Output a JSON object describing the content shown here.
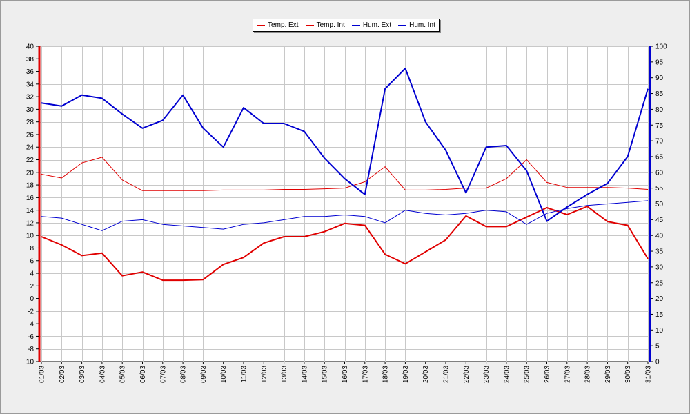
{
  "chart_data": {
    "type": "line",
    "title": "",
    "xlabel": "",
    "ylabel": "",
    "y2label": "",
    "categories": [
      "01/03",
      "02/03",
      "03/03",
      "04/03",
      "05/03",
      "06/03",
      "07/03",
      "08/03",
      "09/03",
      "10/03",
      "11/03",
      "12/03",
      "13/03",
      "14/03",
      "15/03",
      "16/03",
      "17/03",
      "18/03",
      "19/03",
      "20/03",
      "21/03",
      "22/03",
      "23/03",
      "24/03",
      "25/03",
      "26/03",
      "27/03",
      "28/03",
      "29/03",
      "30/03",
      "31/03"
    ],
    "ylim": [
      -10,
      40
    ],
    "yticks": [
      -10,
      -8,
      -6,
      -4,
      -2,
      0,
      2,
      4,
      6,
      8,
      10,
      12,
      14,
      16,
      18,
      20,
      22,
      24,
      26,
      28,
      30,
      32,
      34,
      36,
      38,
      40
    ],
    "y2lim": [
      0,
      100
    ],
    "y2ticks": [
      0,
      5,
      10,
      15,
      20,
      25,
      30,
      35,
      40,
      45,
      50,
      55,
      60,
      65,
      70,
      75,
      80,
      85,
      90,
      95,
      100
    ],
    "grid": true,
    "legend_position": "top-center",
    "series": [
      {
        "name": "Temp. Ext",
        "axis": "left",
        "color": "#e00000",
        "width": 2,
        "values": [
          9.8,
          8.5,
          6.8,
          7.2,
          3.6,
          4.2,
          2.9,
          2.9,
          3.0,
          5.4,
          6.5,
          8.8,
          9.8,
          9.8,
          10.6,
          11.9,
          11.6,
          7.0,
          5.5,
          7.4,
          9.3,
          13.1,
          11.4,
          11.4,
          12.9,
          14.4,
          13.3,
          14.6,
          12.2,
          11.6,
          6.3
        ]
      },
      {
        "name": "Temp. Int",
        "axis": "left",
        "color": "#e00000",
        "width": 1,
        "values": [
          19.7,
          19.1,
          21.5,
          22.4,
          18.8,
          17.1,
          17.1,
          17.1,
          17.1,
          17.2,
          17.2,
          17.2,
          17.3,
          17.3,
          17.4,
          17.5,
          18.5,
          20.9,
          17.2,
          17.2,
          17.3,
          17.5,
          17.5,
          19.0,
          22.0,
          18.4,
          17.6,
          17.6,
          17.6,
          17.5,
          17.3
        ]
      },
      {
        "name": "Hum. Ext",
        "axis": "right",
        "color": "#0000d0",
        "width": 2,
        "values": [
          82,
          81,
          84.5,
          83.5,
          78.5,
          74,
          76.5,
          84.5,
          74,
          68,
          80.5,
          75.5,
          75.5,
          73,
          64.5,
          58,
          53,
          86.5,
          93,
          76,
          67,
          53.5,
          68,
          68.5,
          60.5,
          44.5,
          49,
          53,
          56.5,
          65,
          86.5
        ]
      },
      {
        "name": "Hum. Int",
        "axis": "right",
        "color": "#0000d0",
        "width": 1,
        "values": [
          46,
          45.5,
          43.5,
          41.5,
          44.5,
          45,
          43.5,
          43,
          42.5,
          42,
          43.5,
          44,
          45,
          46,
          46,
          46.5,
          46,
          44,
          48,
          47,
          46.5,
          47,
          48,
          47.5,
          43.5,
          47,
          48.5,
          49.5,
          50,
          50.5,
          51
        ]
      }
    ]
  }
}
